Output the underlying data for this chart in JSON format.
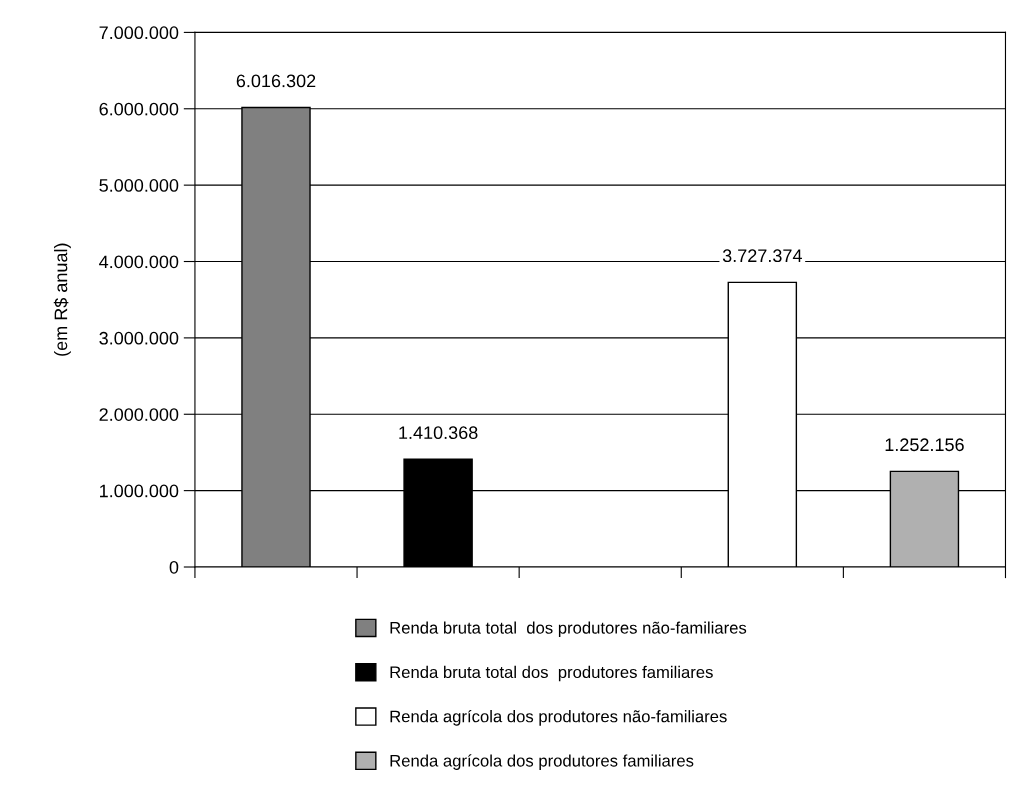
{
  "chart_data": {
    "type": "bar",
    "ylabel": "(em R$ anual)",
    "categories": [
      null,
      null,
      null,
      null,
      null
    ],
    "series": [
      {
        "name": "Renda bruta total  dos produtores não-familiares",
        "color": "#808080",
        "values": [
          6016302,
          null,
          null,
          null,
          null
        ],
        "value_labels": [
          "6.016.302",
          null,
          null,
          null,
          null
        ]
      },
      {
        "name": "Renda bruta total dos  produtores familiares",
        "color": "#000000",
        "values": [
          null,
          1410368,
          null,
          null,
          null
        ],
        "value_labels": [
          null,
          "1.410.368",
          null,
          null,
          null
        ]
      },
      {
        "name": "Renda agrícola dos produtores não-familiares",
        "color": "#ffffff",
        "values": [
          null,
          null,
          null,
          3727374,
          null
        ],
        "value_labels": [
          null,
          null,
          null,
          "3.727.374",
          null
        ]
      },
      {
        "name": "Renda agrícola dos produtores familiares",
        "color": "#b0b0b0",
        "values": [
          null,
          null,
          null,
          null,
          1252156
        ],
        "value_labels": [
          null,
          null,
          null,
          null,
          "1.252.156"
        ]
      }
    ],
    "ylim": [
      0,
      7000000
    ],
    "yticks": [
      0,
      {
        "value": 1000000,
        "label": "1.000.000"
      },
      {
        "value": 2000000,
        "label": "2.000.000"
      },
      {
        "value": 3000000,
        "label": "3.000.000"
      },
      {
        "value": 4000000,
        "label": "4.000.000"
      },
      {
        "value": 5000000,
        "label": "5.000.000"
      },
      {
        "value": 6000000,
        "label": "6.000.000"
      },
      {
        "value": 7000000,
        "label": "7.000.000"
      }
    ],
    "grid": "y",
    "legend": "bottom"
  }
}
